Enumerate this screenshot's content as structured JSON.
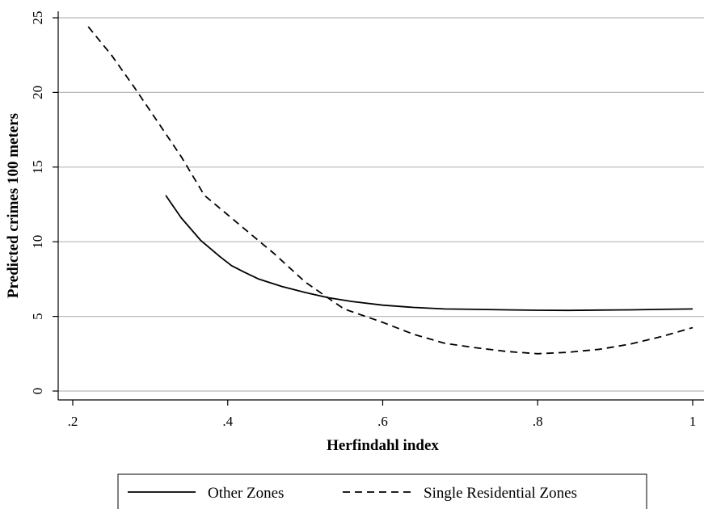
{
  "chart_data": {
    "type": "line",
    "title": "",
    "xlabel": "Herfindahl index",
    "ylabel": "Predicted crimes 100 meters",
    "xlim": [
      0.2,
      1.0
    ],
    "ylim": [
      0,
      25
    ],
    "xticks": [
      {
        "value": 0.2,
        "label": ".2"
      },
      {
        "value": 0.4,
        "label": ".4"
      },
      {
        "value": 0.6,
        "label": ".6"
      },
      {
        "value": 0.8,
        "label": ".8"
      },
      {
        "value": 1.0,
        "label": "1"
      }
    ],
    "yticks": [
      {
        "value": 0,
        "label": "0"
      },
      {
        "value": 5,
        "label": "5"
      },
      {
        "value": 10,
        "label": "10"
      },
      {
        "value": 15,
        "label": "15"
      },
      {
        "value": 20,
        "label": "20"
      },
      {
        "value": 25,
        "label": "25"
      }
    ],
    "grid": "horizontal",
    "legend_position": "bottom",
    "series": [
      {
        "name": "Other Zones",
        "style": "solid",
        "x": [
          0.32,
          0.34,
          0.365,
          0.39,
          0.405,
          0.42,
          0.44,
          0.47,
          0.5,
          0.53,
          0.56,
          0.6,
          0.64,
          0.68,
          0.72,
          0.76,
          0.8,
          0.84,
          0.88,
          0.92,
          0.96,
          1.0
        ],
        "y": [
          13.1,
          11.6,
          10.1,
          9.0,
          8.4,
          8.0,
          7.5,
          7.0,
          6.6,
          6.25,
          6.0,
          5.75,
          5.6,
          5.5,
          5.47,
          5.44,
          5.41,
          5.4,
          5.42,
          5.44,
          5.47,
          5.5
        ]
      },
      {
        "name": "Single Residential Zones",
        "style": "dashed",
        "x": [
          0.22,
          0.25,
          0.28,
          0.31,
          0.34,
          0.37,
          0.4,
          0.43,
          0.46,
          0.5,
          0.55,
          0.6,
          0.64,
          0.68,
          0.72,
          0.76,
          0.8,
          0.84,
          0.88,
          0.92,
          0.96,
          1.0
        ],
        "y": [
          24.4,
          22.5,
          20.3,
          18.0,
          15.7,
          13.1,
          11.8,
          10.5,
          9.2,
          7.3,
          5.5,
          4.6,
          3.8,
          3.2,
          2.9,
          2.65,
          2.5,
          2.6,
          2.8,
          3.15,
          3.65,
          4.25
        ]
      }
    ]
  },
  "colors": {
    "gridline": "#b8b8b8",
    "axis": "#000000",
    "series_line": "#000000",
    "legend_border": "#000000",
    "background": "#ffffff"
  }
}
